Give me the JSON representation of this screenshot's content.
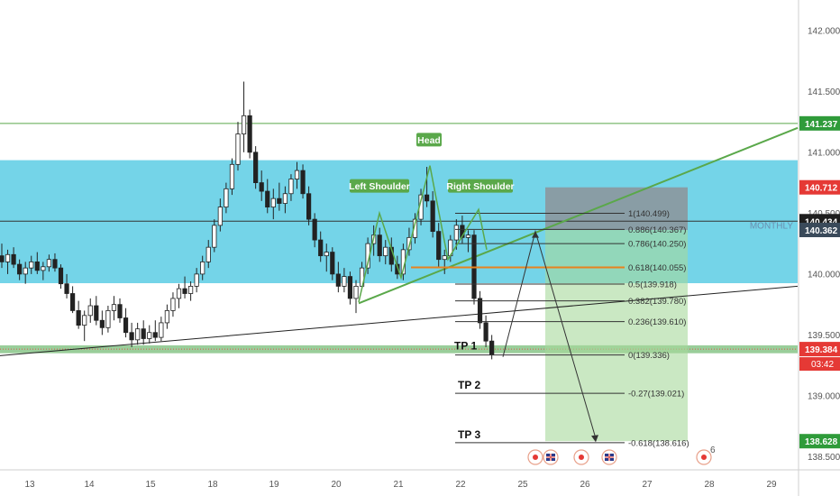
{
  "chart_data": {
    "type": "candlestick",
    "x_labels": [
      "13",
      "14",
      "15",
      "18",
      "19",
      "20",
      "21",
      "22",
      "25",
      "26",
      "27",
      "28",
      "29"
    ],
    "y_ticks": [
      "142.000",
      "141.500",
      "141.000",
      "140.500",
      "140.000",
      "139.500",
      "139.000",
      "138.500"
    ],
    "ylim": [
      138.4,
      142.25
    ],
    "zone": {
      "low": 139.925,
      "high": 140.935,
      "color": "#5ccde4"
    },
    "support_band": {
      "low": 139.35,
      "high": 139.415,
      "color": "#8fc98f"
    },
    "horizontal_lines": [
      {
        "price": 141.237,
        "color": "#5aa84a"
      },
      {
        "price": 140.434,
        "color": "#333333"
      }
    ],
    "zone_label": "MONTHLY",
    "price_badges": [
      {
        "label": "141.237",
        "price": 141.237,
        "color": "#2f9b3a"
      },
      {
        "label": "140.712",
        "price": 140.712,
        "color": "#e53935"
      },
      {
        "label": "140.434",
        "price": 140.434,
        "color": "#1e1e1e"
      },
      {
        "label": "140.362",
        "price": 140.362,
        "color": "#3a4a5a"
      },
      {
        "label": "139.384",
        "price": 139.384,
        "color": "#e53935"
      },
      {
        "label": "138.628",
        "price": 138.628,
        "color": "#2f9b3a"
      }
    ],
    "countdown": "03:42",
    "fibonacci": [
      {
        "label": "1(140.499)",
        "price": 140.499,
        "color": "#333333"
      },
      {
        "label": "0.886(140.367)",
        "price": 140.367,
        "color": "#333333"
      },
      {
        "label": "0.786(140.250)",
        "price": 140.25,
        "color": "#333333"
      },
      {
        "label": "0.618(140.055)",
        "price": 140.055,
        "color": "#e8821e"
      },
      {
        "label": "0.5(139.918)",
        "price": 139.918,
        "color": "#333333"
      },
      {
        "label": "0.382(139.780)",
        "price": 139.78,
        "color": "#333333"
      },
      {
        "label": "0.236(139.610)",
        "price": 139.61,
        "color": "#333333"
      },
      {
        "label": "0(139.336)",
        "price": 139.336,
        "color": "#333333"
      },
      {
        "label": "-0.27(139.021)",
        "price": 139.021,
        "color": "#333333"
      },
      {
        "label": "-0.618(138.616)",
        "price": 138.616,
        "color": "#333333"
      }
    ],
    "pattern_labels": [
      "Left Shoulder",
      "Head",
      "Right Shoulder"
    ],
    "targets": [
      "TP 1",
      "TP 2",
      "TP 3"
    ],
    "position": {
      "entry": 140.362,
      "stop": 140.712,
      "target": 138.628
    },
    "candles": [
      [
        140.15,
        140.25,
        140.05,
        140.1
      ],
      [
        140.1,
        140.2,
        140.0,
        140.16
      ],
      [
        140.16,
        140.22,
        140.05,
        140.08
      ],
      [
        140.08,
        140.12,
        139.95,
        140.0
      ],
      [
        140.0,
        140.1,
        139.92,
        140.05
      ],
      [
        140.05,
        140.15,
        140.0,
        140.1
      ],
      [
        140.1,
        140.18,
        140.0,
        140.03
      ],
      [
        140.03,
        140.1,
        139.95,
        140.06
      ],
      [
        140.06,
        140.16,
        140.02,
        140.12
      ],
      [
        140.12,
        140.17,
        140.02,
        140.05
      ],
      [
        140.05,
        140.08,
        139.88,
        139.92
      ],
      [
        139.92,
        140.0,
        139.8,
        139.84
      ],
      [
        139.84,
        139.9,
        139.68,
        139.7
      ],
      [
        139.7,
        139.78,
        139.55,
        139.58
      ],
      [
        139.58,
        139.7,
        139.45,
        139.66
      ],
      [
        139.66,
        139.8,
        139.6,
        139.74
      ],
      [
        139.74,
        139.82,
        139.58,
        139.62
      ],
      [
        139.62,
        139.7,
        139.5,
        139.56
      ],
      [
        139.56,
        139.74,
        139.52,
        139.7
      ],
      [
        139.7,
        139.82,
        139.62,
        139.75
      ],
      [
        139.75,
        139.8,
        139.6,
        139.64
      ],
      [
        139.64,
        139.72,
        139.48,
        139.52
      ],
      [
        139.52,
        139.6,
        139.4,
        139.46
      ],
      [
        139.46,
        139.6,
        139.42,
        139.55
      ],
      [
        139.55,
        139.62,
        139.42,
        139.47
      ],
      [
        139.47,
        139.58,
        139.43,
        139.52
      ],
      [
        139.52,
        139.62,
        139.45,
        139.48
      ],
      [
        139.48,
        139.65,
        139.45,
        139.6
      ],
      [
        139.6,
        139.75,
        139.55,
        139.7
      ],
      [
        139.7,
        139.85,
        139.65,
        139.8
      ],
      [
        139.8,
        139.92,
        139.72,
        139.88
      ],
      [
        139.88,
        139.98,
        139.8,
        139.84
      ],
      [
        139.84,
        139.94,
        139.78,
        139.9
      ],
      [
        139.9,
        140.05,
        139.85,
        140.0
      ],
      [
        140.0,
        140.15,
        139.95,
        140.1
      ],
      [
        140.1,
        140.28,
        140.05,
        140.22
      ],
      [
        140.22,
        140.45,
        140.18,
        140.4
      ],
      [
        140.4,
        140.62,
        140.35,
        140.55
      ],
      [
        140.55,
        140.75,
        140.5,
        140.7
      ],
      [
        140.7,
        140.95,
        140.65,
        140.9
      ],
      [
        140.9,
        141.25,
        140.85,
        141.15
      ],
      [
        141.15,
        141.58,
        141.0,
        141.3
      ],
      [
        141.3,
        141.35,
        140.95,
        141.0
      ],
      [
        141.0,
        141.05,
        140.7,
        140.75
      ],
      [
        140.75,
        140.85,
        140.6,
        140.68
      ],
      [
        140.68,
        140.78,
        140.5,
        140.55
      ],
      [
        140.55,
        140.7,
        140.45,
        140.62
      ],
      [
        140.62,
        140.75,
        140.52,
        140.58
      ],
      [
        140.58,
        140.72,
        140.5,
        140.66
      ],
      [
        140.66,
        140.82,
        140.6,
        140.78
      ],
      [
        140.78,
        140.92,
        140.7,
        140.85
      ],
      [
        140.85,
        140.9,
        140.62,
        140.66
      ],
      [
        140.66,
        140.72,
        140.4,
        140.45
      ],
      [
        140.45,
        140.5,
        140.22,
        140.28
      ],
      [
        140.28,
        140.35,
        140.1,
        140.15
      ],
      [
        140.15,
        140.25,
        140.02,
        140.18
      ],
      [
        140.18,
        140.22,
        139.95,
        140.0
      ],
      [
        140.0,
        140.1,
        139.85,
        139.9
      ],
      [
        139.9,
        140.05,
        139.85,
        139.98
      ],
      [
        139.98,
        140.02,
        139.75,
        139.8
      ],
      [
        139.8,
        139.95,
        139.68,
        139.9
      ],
      [
        139.9,
        140.1,
        139.88,
        140.05
      ],
      [
        140.05,
        140.3,
        140.0,
        140.25
      ],
      [
        140.25,
        140.4,
        140.15,
        140.32
      ],
      [
        140.32,
        140.38,
        140.1,
        140.15
      ],
      [
        140.15,
        140.28,
        140.08,
        140.22
      ],
      [
        140.22,
        140.3,
        140.02,
        140.08
      ],
      [
        140.08,
        140.15,
        139.96,
        140.0
      ],
      [
        140.0,
        140.25,
        139.95,
        140.2
      ],
      [
        140.2,
        140.38,
        140.15,
        140.3
      ],
      [
        140.3,
        140.5,
        140.25,
        140.45
      ],
      [
        140.45,
        140.7,
        140.4,
        140.65
      ],
      [
        140.65,
        140.88,
        140.55,
        140.6
      ],
      [
        140.6,
        140.68,
        140.3,
        140.35
      ],
      [
        140.35,
        140.42,
        140.05,
        140.12
      ],
      [
        140.12,
        140.2,
        140.0,
        140.15
      ],
      [
        140.15,
        140.32,
        140.1,
        140.28
      ],
      [
        140.28,
        140.45,
        140.2,
        140.4
      ],
      [
        140.4,
        140.48,
        140.25,
        140.3
      ],
      [
        140.3,
        140.36,
        140.18,
        140.32
      ],
      [
        140.32,
        140.36,
        139.75,
        139.8
      ],
      [
        139.8,
        139.86,
        139.55,
        139.6
      ],
      [
        139.6,
        139.66,
        139.4,
        139.45
      ],
      [
        139.45,
        139.5,
        139.3,
        139.34
      ]
    ]
  }
}
